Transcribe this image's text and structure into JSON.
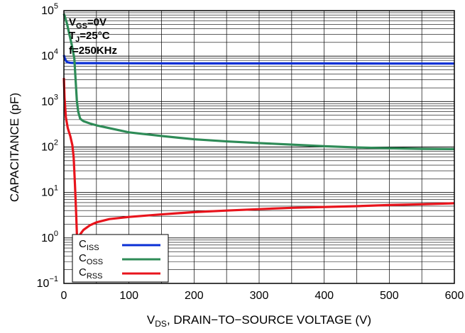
{
  "chart_data": {
    "type": "line",
    "xlabel": "V",
    "xlabel_sub": "DS",
    "xlabel_rest": ", DRAIN−TO−SOURCE VOLTAGE (V)",
    "ylabel": "CAPACITANCE (pF)",
    "xlim": [
      0,
      600
    ],
    "ylim": [
      0.1,
      100000
    ],
    "y_scale": "log",
    "grid": true,
    "x_ticks": [
      {
        "value": 0,
        "label": "0"
      },
      {
        "value": 100,
        "label": "100"
      },
      {
        "value": 200,
        "label": "200"
      },
      {
        "value": 300,
        "label": "300"
      },
      {
        "value": 400,
        "label": "400"
      },
      {
        "value": 500,
        "label": "500"
      },
      {
        "value": 600,
        "label": "600"
      }
    ],
    "y_ticks": [
      {
        "value": 0.1,
        "base": "10",
        "exp": "−1"
      },
      {
        "value": 1,
        "base": "10",
        "exp": "0"
      },
      {
        "value": 10,
        "base": "10",
        "exp": "1"
      },
      {
        "value": 100,
        "base": "10",
        "exp": "2"
      },
      {
        "value": 1000,
        "base": "10",
        "exp": "3"
      },
      {
        "value": 10000,
        "base": "10",
        "exp": "4"
      },
      {
        "value": 100000,
        "base": "10",
        "exp": "5"
      }
    ],
    "conditions": [
      {
        "main": "V",
        "sub": "GS",
        "rest": "=0V"
      },
      {
        "main": "T",
        "sub": "J",
        "rest": "=25°C"
      },
      {
        "main": "f=250KHz",
        "sub": "",
        "rest": ""
      }
    ],
    "legend_position": "bottom-left",
    "series": [
      {
        "name": "C",
        "name_sub": "ISS",
        "color": "#0a2fd6",
        "points": [
          [
            0,
            10500
          ],
          [
            0.5,
            9800
          ],
          [
            1,
            9300
          ],
          [
            2,
            8600
          ],
          [
            3,
            8000
          ],
          [
            4,
            7600
          ],
          [
            6,
            7300
          ],
          [
            10,
            7100
          ],
          [
            20,
            7000
          ],
          [
            50,
            7000
          ],
          [
            100,
            6950
          ],
          [
            200,
            6900
          ],
          [
            300,
            6900
          ],
          [
            400,
            6900
          ],
          [
            500,
            6850
          ],
          [
            600,
            6850
          ]
        ]
      },
      {
        "name": "C",
        "name_sub": "OSS",
        "color": "#2e8b57",
        "points": [
          [
            0,
            85000
          ],
          [
            2,
            70000
          ],
          [
            5,
            50000
          ],
          [
            8,
            32000
          ],
          [
            12,
            18000
          ],
          [
            16,
            9000
          ],
          [
            18,
            3000
          ],
          [
            20,
            1000
          ],
          [
            22,
            600
          ],
          [
            25,
            420
          ],
          [
            30,
            370
          ],
          [
            40,
            330
          ],
          [
            50,
            300
          ],
          [
            100,
            210
          ],
          [
            150,
            175
          ],
          [
            200,
            148
          ],
          [
            250,
            133
          ],
          [
            300,
            122
          ],
          [
            350,
            113
          ],
          [
            400,
            104
          ],
          [
            450,
            98
          ],
          [
            500,
            94
          ],
          [
            550,
            91
          ],
          [
            600,
            90
          ]
        ]
      },
      {
        "name": "C",
        "name_sub": "RSS",
        "color": "#e8141c",
        "points": [
          [
            0,
            3300
          ],
          [
            1,
            1200
          ],
          [
            3,
            450
          ],
          [
            6,
            260
          ],
          [
            10,
            170
          ],
          [
            13,
            110
          ],
          [
            15,
            60
          ],
          [
            17,
            15
          ],
          [
            19,
            3
          ],
          [
            20,
            1.2
          ],
          [
            21,
            0.9
          ],
          [
            25,
            1.2
          ],
          [
            30,
            1.5
          ],
          [
            40,
            1.9
          ],
          [
            50,
            2.2
          ],
          [
            70,
            2.6
          ],
          [
            100,
            2.9
          ],
          [
            150,
            3.3
          ],
          [
            200,
            3.7
          ],
          [
            250,
            4.0
          ],
          [
            300,
            4.3
          ],
          [
            350,
            4.6
          ],
          [
            400,
            4.8
          ],
          [
            450,
            5.0
          ],
          [
            500,
            5.3
          ],
          [
            550,
            5.5
          ],
          [
            600,
            5.8
          ]
        ]
      }
    ]
  }
}
